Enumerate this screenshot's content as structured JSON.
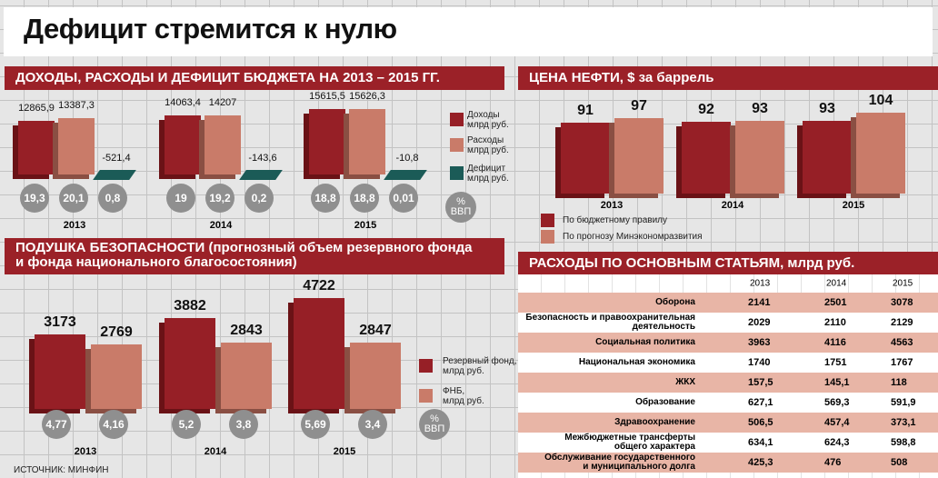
{
  "title": "Дефицит стремится к нулю",
  "source": "ИСТОЧНИК: МИНФИН",
  "colors": {
    "header": "#9b2128",
    "dark_red": "#961f26",
    "salmon": "#c97b69",
    "teal": "#1b5b57",
    "circle": "#8f8f8f",
    "row_pink": "#e8b5a6"
  },
  "chart_data": [
    {
      "type": "bar",
      "title": "ДОХОДЫ, РАСХОДЫ И ДЕФИЦИТ БЮДЖЕТА НА 2013 – 2015 ГГ.",
      "categories": [
        "2013",
        "2014",
        "2015"
      ],
      "series": [
        {
          "name": "Доходы",
          "unit": "млрд руб.",
          "values": [
            12865.9,
            14063.4,
            15615.5
          ],
          "labels": [
            "12865,9",
            "14063,4",
            "15615,5"
          ],
          "gdp_pct": [
            "19,3",
            "19",
            "18,8"
          ]
        },
        {
          "name": "Расходы",
          "unit": "млрд руб.",
          "values": [
            13387.3,
            14207,
            15626.3
          ],
          "labels": [
            "13387,3",
            "14207",
            "15626,3"
          ],
          "gdp_pct": [
            "20,1",
            "19,2",
            "18,8"
          ]
        },
        {
          "name": "Дефицит",
          "unit": "млрд руб.",
          "values": [
            -521.4,
            -143.6,
            -10.8
          ],
          "labels": [
            "-521,4",
            "-143,6",
            "-10,8"
          ],
          "gdp_pct": [
            "0,8",
            "0,2",
            "0,01"
          ]
        }
      ],
      "gdp_label": [
        "%",
        "ВВП"
      ]
    },
    {
      "type": "bar",
      "title": "ЦЕНА НЕФТИ, $ за баррель",
      "categories": [
        "2013",
        "2014",
        "2015"
      ],
      "series": [
        {
          "name": "По бюджетному правилу",
          "values": [
            91,
            92,
            93
          ],
          "labels": [
            "91",
            "92",
            "93"
          ]
        },
        {
          "name": "По прогнозу Минэкономразвития",
          "values": [
            97,
            93,
            104
          ],
          "labels": [
            "97",
            "93",
            "104"
          ]
        }
      ]
    },
    {
      "type": "bar",
      "title_line1": "ПОДУШКА БЕЗОПАСНОСТИ (прогнозный объем резервного фонда",
      "title_line2": "и фонда национального благосостояния)",
      "categories": [
        "2013",
        "2014",
        "2015"
      ],
      "series": [
        {
          "name": "Резервный фонд,",
          "unit": "млрд руб.",
          "values": [
            3173,
            3882,
            4722
          ],
          "labels": [
            "3173",
            "3882",
            "4722"
          ],
          "gdp_pct": [
            "4,77",
            "5,2",
            "5,69"
          ]
        },
        {
          "name": "ФНБ,",
          "unit": "млрд руб.",
          "values": [
            2769,
            2843,
            2847
          ],
          "labels": [
            "2769",
            "2843",
            "2847"
          ],
          "gdp_pct": [
            "4,16",
            "3,8",
            "3,4"
          ]
        }
      ],
      "gdp_label": [
        "%",
        "ВВП"
      ]
    },
    {
      "type": "table",
      "title": "РАСХОДЫ ПО ОСНОВНЫМ СТАТЬЯМ, млрд руб.",
      "columns": [
        "2013",
        "2014",
        "2015"
      ],
      "rows": [
        {
          "name": [
            "Оборона"
          ],
          "values": [
            "2141",
            "2501",
            "3078"
          ]
        },
        {
          "name": [
            "Безопасность и правоохранительная",
            "деятельность"
          ],
          "values": [
            "2029",
            "2110",
            "2129"
          ]
        },
        {
          "name": [
            "Социальная политика"
          ],
          "values": [
            "3963",
            "4116",
            "4563"
          ]
        },
        {
          "name": [
            "Национальная экономика"
          ],
          "values": [
            "1740",
            "1751",
            "1767"
          ]
        },
        {
          "name": [
            "ЖКХ"
          ],
          "values": [
            "157,5",
            "145,1",
            "118"
          ]
        },
        {
          "name": [
            "Образование"
          ],
          "values": [
            "627,1",
            "569,3",
            "591,9"
          ]
        },
        {
          "name": [
            "Здравоохранение"
          ],
          "values": [
            "506,5",
            "457,4",
            "373,1"
          ]
        },
        {
          "name": [
            "Межбюджетные трансферты",
            "общего характера"
          ],
          "values": [
            "634,1",
            "624,3",
            "598,8"
          ]
        },
        {
          "name": [
            "Обслуживание государственного",
            "и муниципального долга"
          ],
          "values": [
            "425,3",
            "476",
            "508"
          ]
        }
      ]
    }
  ]
}
